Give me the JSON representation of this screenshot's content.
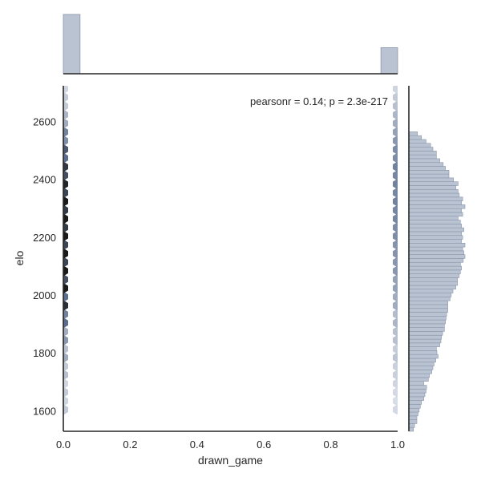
{
  "chart_data": {
    "type": "hexbin-joint",
    "annotation": "pearsonr = 0.14; p = 2.3e-217",
    "xlabel": "drawn_game",
    "ylabel": "elo",
    "xlim": [
      0.0,
      1.0
    ],
    "ylim": [
      1530,
      2725
    ],
    "xticks": [
      0.0,
      0.2,
      0.4,
      0.6,
      0.8,
      1.0
    ],
    "xtick_labels": [
      "0.0",
      "0.2",
      "0.4",
      "0.6",
      "0.8",
      "1.0"
    ],
    "yticks": [
      1600,
      1800,
      2000,
      2200,
      2400,
      2600
    ],
    "ytick_labels": [
      "1600",
      "1800",
      "2000",
      "2200",
      "2400",
      "2600"
    ],
    "colors": {
      "bar_fill": "#b9c3d2",
      "bar_edge": "#8a97ab",
      "hex_dark": "#1a1a1a",
      "hex_mid": "#5b6d8c",
      "hex_light": "#e6e9ef",
      "axis": "#262626"
    },
    "hexbins": {
      "rows_y": [
        1605,
        1635,
        1665,
        1695,
        1725,
        1755,
        1785,
        1815,
        1845,
        1875,
        1905,
        1935,
        1965,
        1995,
        2025,
        2055,
        2085,
        2115,
        2145,
        2175,
        2205,
        2235,
        2265,
        2295,
        2325,
        2355,
        2385,
        2415,
        2445,
        2475,
        2505,
        2535,
        2565,
        2595,
        2625,
        2655,
        2685,
        2715
      ],
      "x0_counts": [
        0.15,
        0.1,
        0.15,
        0.1,
        0.2,
        0.15,
        0.3,
        0.2,
        0.4,
        0.3,
        0.6,
        0.5,
        0.9,
        0.6,
        1.0,
        0.75,
        1.0,
        0.8,
        1.0,
        0.8,
        1.0,
        0.85,
        1.0,
        0.85,
        1.0,
        0.8,
        0.95,
        0.75,
        0.85,
        0.6,
        0.7,
        0.45,
        0.5,
        0.3,
        0.25,
        0.15,
        0.15,
        0.1
      ],
      "x1_counts": [
        0.08,
        0.06,
        0.08,
        0.1,
        0.12,
        0.12,
        0.18,
        0.14,
        0.2,
        0.2,
        0.25,
        0.22,
        0.3,
        0.3,
        0.35,
        0.35,
        0.4,
        0.4,
        0.42,
        0.42,
        0.45,
        0.45,
        0.48,
        0.48,
        0.5,
        0.48,
        0.5,
        0.48,
        0.5,
        0.45,
        0.45,
        0.4,
        0.35,
        0.3,
        0.25,
        0.2,
        0.15,
        0.1
      ]
    },
    "marginal_x": {
      "bins": [
        {
          "x0": 0.0,
          "x1": 0.05,
          "height": 1.0
        },
        {
          "x0": 0.95,
          "x1": 1.0,
          "height": 0.44
        }
      ]
    },
    "marginal_y": {
      "bin_edges_start": 1530,
      "bin_width": 13.28,
      "counts": [
        8,
        10,
        14,
        14,
        16,
        18,
        20,
        22,
        26,
        28,
        30,
        31,
        26,
        34,
        36,
        40,
        42,
        44,
        47,
        51,
        49,
        48,
        54,
        56,
        57,
        59,
        62,
        62,
        64,
        65,
        66,
        68,
        68,
        68,
        72,
        74,
        77,
        82,
        85,
        85,
        88,
        90,
        92,
        90,
        95,
        98,
        96,
        94,
        98,
        92,
        94,
        92,
        96,
        92,
        90,
        86,
        94,
        92,
        98,
        92,
        94,
        88,
        86,
        82,
        86,
        78,
        70,
        70,
        64,
        60,
        54,
        48,
        48,
        42,
        38,
        30,
        22,
        15
      ]
    }
  }
}
